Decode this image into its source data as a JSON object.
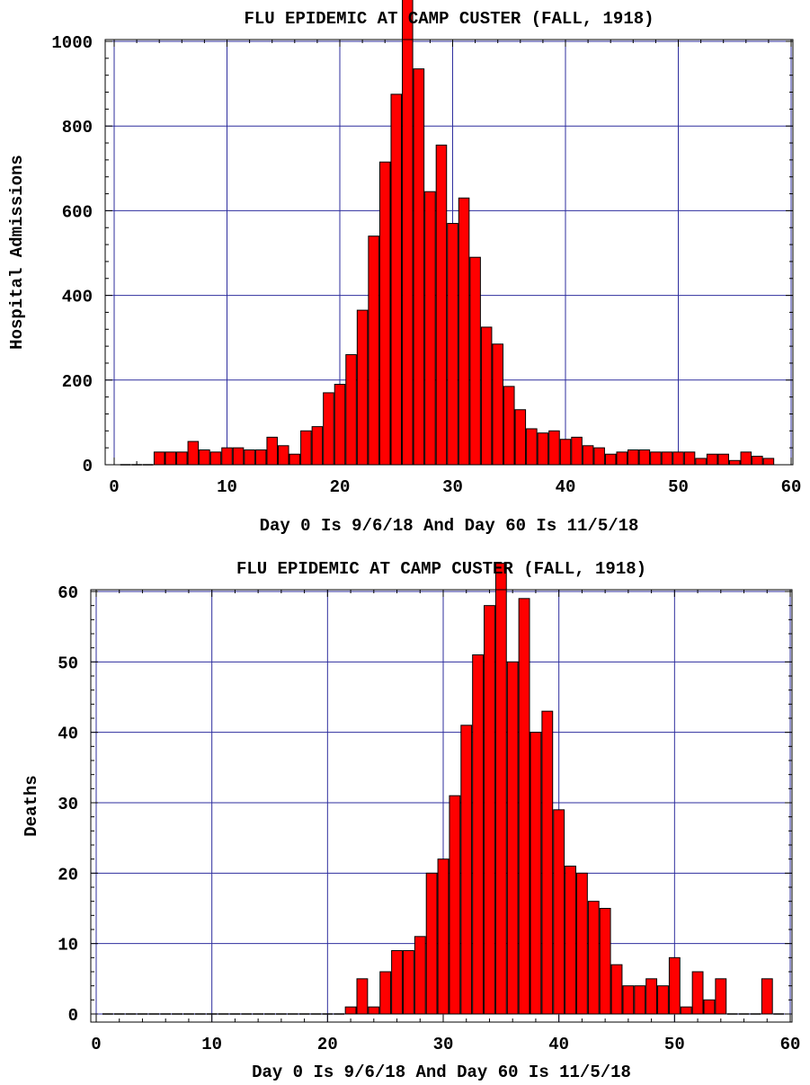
{
  "chart_data": [
    {
      "type": "bar",
      "title": "FLU EPIDEMIC AT CAMP CUSTER (FALL, 1918)",
      "xlabel": "Day 0 Is 9/6/18 And Day 60 Is 11/5/18",
      "ylabel": "Hospital Admissions",
      "xlim": [
        -1,
        60
      ],
      "ylim": [
        -25,
        1160
      ],
      "xticks": [
        0,
        10,
        20,
        30,
        40,
        50,
        60
      ],
      "yticks": [
        0,
        200,
        400,
        600,
        800,
        1000
      ],
      "grid": true,
      "x": [
        1,
        2,
        3,
        4,
        5,
        6,
        7,
        8,
        9,
        10,
        11,
        12,
        13,
        14,
        15,
        16,
        17,
        18,
        19,
        20,
        21,
        22,
        23,
        24,
        25,
        26,
        27,
        28,
        29,
        30,
        31,
        32,
        33,
        34,
        35,
        36,
        37,
        38,
        39,
        40,
        41,
        42,
        43,
        44,
        45,
        46,
        47,
        48,
        49,
        50,
        51,
        52,
        53,
        54,
        55,
        56,
        57,
        58
      ],
      "values": [
        0,
        0,
        0,
        30,
        30,
        30,
        55,
        35,
        30,
        40,
        40,
        35,
        35,
        65,
        45,
        25,
        80,
        90,
        170,
        190,
        260,
        365,
        540,
        715,
        875,
        1130,
        935,
        645,
        755,
        570,
        630,
        490,
        325,
        285,
        185,
        130,
        85,
        75,
        80,
        60,
        65,
        45,
        40,
        25,
        30,
        35,
        35,
        30,
        30,
        30,
        30,
        15,
        25,
        25,
        10,
        30,
        20,
        15
      ]
    },
    {
      "type": "bar",
      "title": "FLU EPIDEMIC AT CAMP CUSTER (FALL, 1918)",
      "xlabel": "Day 0 Is 9/6/18 And Day 60 Is 11/5/18",
      "ylabel": "Deaths",
      "xlim": [
        0,
        61
      ],
      "ylim": [
        -1.5,
        67
      ],
      "xticks": [
        0,
        10,
        20,
        30,
        40,
        50,
        60
      ],
      "yticks": [
        0,
        10,
        20,
        30,
        40,
        50,
        60
      ],
      "grid": true,
      "x": [
        1,
        2,
        3,
        4,
        5,
        6,
        7,
        8,
        9,
        10,
        11,
        12,
        13,
        14,
        15,
        16,
        17,
        18,
        19,
        20,
        21,
        22,
        23,
        24,
        25,
        26,
        27,
        28,
        29,
        30,
        31,
        32,
        33,
        34,
        35,
        36,
        37,
        38,
        39,
        40,
        41,
        42,
        43,
        44,
        45,
        46,
        47,
        48,
        49,
        50,
        51,
        52,
        53,
        54,
        55,
        56,
        57,
        58,
        59
      ],
      "values": [
        0,
        0,
        0,
        0,
        0,
        0,
        0,
        0,
        0,
        0,
        0,
        0,
        0,
        0,
        0,
        0,
        0,
        0,
        0,
        0,
        0,
        1,
        5,
        1,
        6,
        9,
        9,
        11,
        20,
        22,
        31,
        41,
        51,
        58,
        64,
        50,
        59,
        40,
        43,
        29,
        21,
        20,
        16,
        15,
        7,
        4,
        4,
        5,
        4,
        8,
        1,
        6,
        2,
        5,
        0,
        0,
        0,
        5,
        0
      ]
    }
  ]
}
